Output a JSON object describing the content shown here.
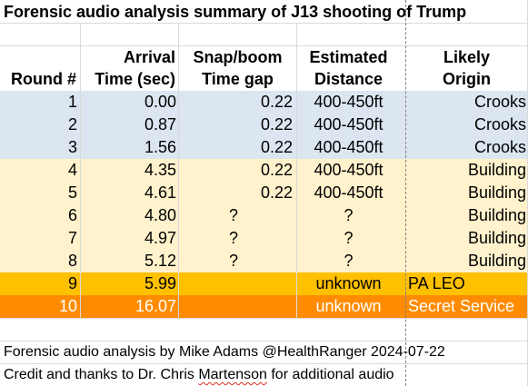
{
  "title": "Forensic audio analysis summary of J13 shooting of Trump",
  "headers": {
    "round": [
      "",
      "Round #"
    ],
    "arrival": [
      "Arrival",
      "Time (sec)"
    ],
    "gap": [
      "Snap/boom",
      "Time gap"
    ],
    "distance": [
      "Estimated",
      "Distance"
    ],
    "origin": [
      "Likely",
      "Origin"
    ]
  },
  "rows": [
    {
      "round": "1",
      "arrival": "0.00",
      "gap": "0.22",
      "distance": "400-450ft",
      "origin": "Crooks"
    },
    {
      "round": "2",
      "arrival": "0.87",
      "gap": "0.22",
      "distance": "400-450ft",
      "origin": "Crooks"
    },
    {
      "round": "3",
      "arrival": "1.56",
      "gap": "0.22",
      "distance": "400-450ft",
      "origin": "Crooks"
    },
    {
      "round": "4",
      "arrival": "4.35",
      "gap": "0.22",
      "distance": "400-450ft",
      "origin": "Building"
    },
    {
      "round": "5",
      "arrival": "4.61",
      "gap": "0.22",
      "distance": "400-450ft",
      "origin": "Building"
    },
    {
      "round": "6",
      "arrival": "4.80",
      "gap": "?",
      "distance": "?",
      "origin": "Building"
    },
    {
      "round": "7",
      "arrival": "4.97",
      "gap": "?",
      "distance": "?",
      "origin": "Building"
    },
    {
      "round": "8",
      "arrival": "5.12",
      "gap": "?",
      "distance": "?",
      "origin": "Building"
    },
    {
      "round": "9",
      "arrival": "5.99",
      "gap": "",
      "distance": "unknown",
      "origin": "PA LEO"
    },
    {
      "round": "10",
      "arrival": "16.07",
      "gap": "",
      "distance": "unknown",
      "origin": "Secret Service"
    }
  ],
  "footer": {
    "line1": "Forensic audio analysis by Mike Adams @HealthRanger 2024-07-22",
    "line2_before": "Credit and thanks to Dr. Chris ",
    "line2_name": "Martenson",
    "line2_after": " for additional audio"
  },
  "colors": {
    "crooks_rows": "#dce6f1",
    "building_rows": "#fff2cc",
    "pa_leo_row": "#ffc000",
    "secret_service_row": "#ff8c00",
    "grid": "#d9d9d9"
  }
}
